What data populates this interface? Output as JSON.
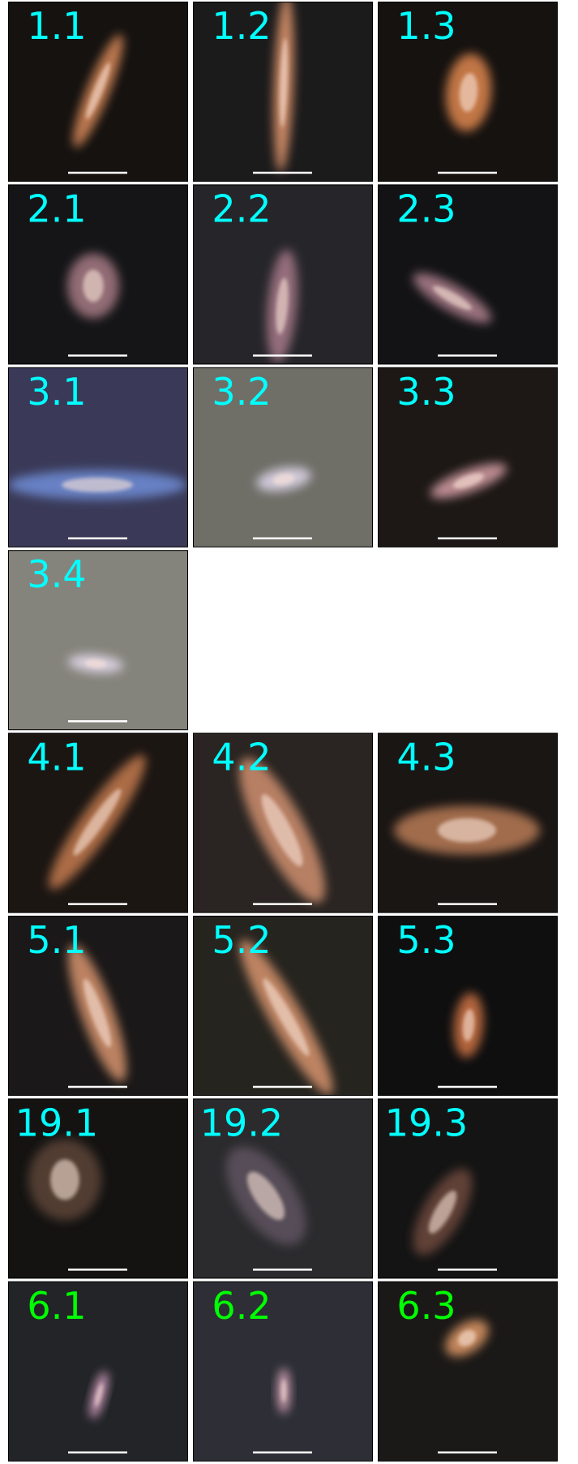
{
  "rows": [
    [
      {
        "label": "1.1",
        "color": "#00ffff"
      },
      {
        "label": "1.2",
        "color": "#00ffff"
      },
      {
        "label": "1.3",
        "color": "#00ffff"
      }
    ],
    [
      {
        "label": "2.1",
        "color": "#00ffff"
      },
      {
        "label": "2.2",
        "color": "#00ffff"
      },
      {
        "label": "2.3",
        "color": "#00ffff"
      }
    ],
    [
      {
        "label": "3.1",
        "color": "#00ffff"
      },
      {
        "label": "3.2",
        "color": "#00ffff"
      },
      {
        "label": "3.3",
        "color": "#00ffff"
      }
    ],
    [
      {
        "label": "3.4",
        "color": "#00ffff"
      }
    ],
    [
      {
        "label": "4.1",
        "color": "#00ffff"
      },
      {
        "label": "4.2",
        "color": "#00ffff"
      },
      {
        "label": "4.3",
        "color": "#00ffff"
      }
    ],
    [
      {
        "label": "5.1",
        "color": "#00ffff"
      },
      {
        "label": "5.2",
        "color": "#00ffff"
      },
      {
        "label": "5.3",
        "color": "#00ffff"
      }
    ],
    [
      {
        "label": "19.1",
        "color": "#00ffff"
      },
      {
        "label": "19.2",
        "color": "#00ffff"
      },
      {
        "label": "19.3",
        "color": "#00ffff"
      }
    ],
    [
      {
        "label": "6.1",
        "color": "#00ff00"
      },
      {
        "label": "6.2",
        "color": "#00ff00"
      },
      {
        "label": "6.3",
        "color": "#00ff00"
      }
    ]
  ]
}
